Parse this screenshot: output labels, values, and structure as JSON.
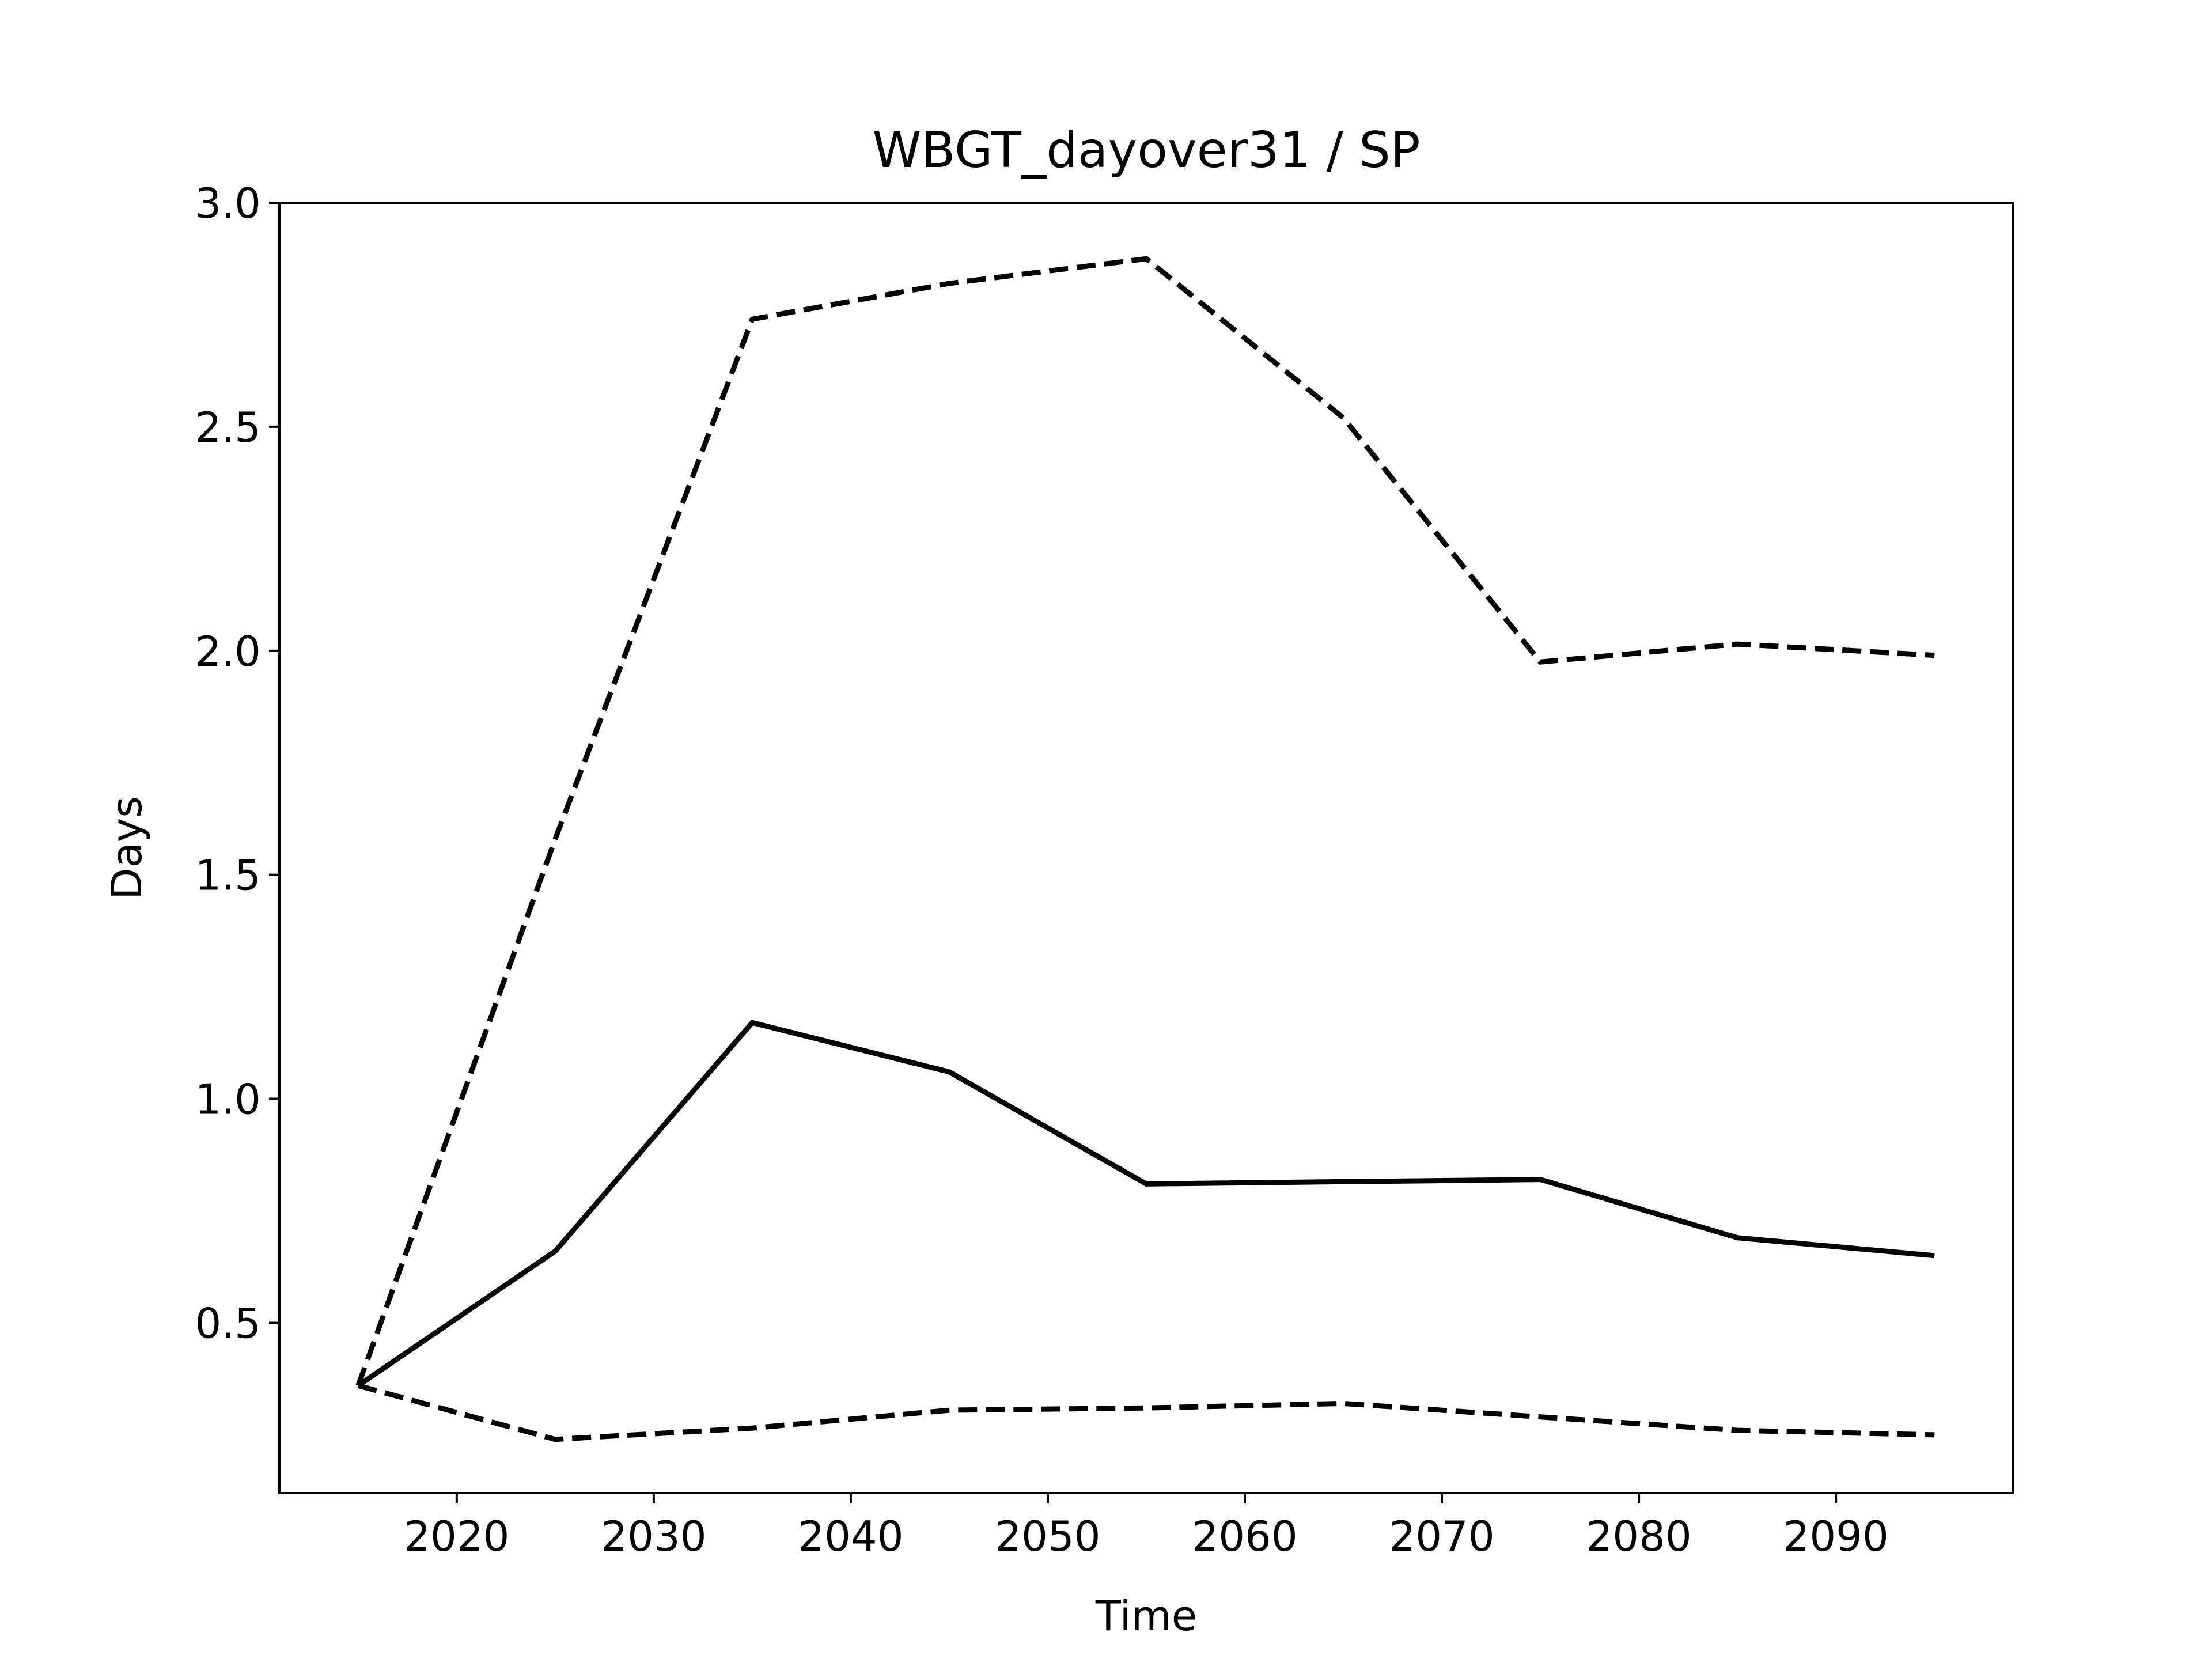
{
  "chart_data": {
    "type": "line",
    "title": "WBGT_dayover31 / SP",
    "xlabel": "Time",
    "ylabel": "Days",
    "xlim": [
      2011,
      2099
    ],
    "ylim": [
      0.12,
      3.0
    ],
    "xticks": [
      2020,
      2030,
      2040,
      2050,
      2060,
      2070,
      2080,
      2090
    ],
    "yticks": [
      0.5,
      1.0,
      1.5,
      2.0,
      2.5,
      3.0
    ],
    "ytick_labels": [
      "0.5",
      "1.0",
      "1.5",
      "2.0",
      "2.5",
      "3.0"
    ],
    "grid": false,
    "x": [
      2015,
      2025,
      2035,
      2045,
      2055,
      2065,
      2075,
      2085,
      2095
    ],
    "series": [
      {
        "style": "solid",
        "color": "#000000",
        "values": [
          0.36,
          0.66,
          1.17,
          1.06,
          0.81,
          0.815,
          0.82,
          0.69,
          0.65
        ]
      },
      {
        "style": "dashed",
        "color": "#000000",
        "values": [
          0.36,
          1.58,
          2.74,
          2.82,
          2.875,
          2.52,
          1.975,
          2.015,
          1.99
        ]
      },
      {
        "style": "dashed",
        "color": "#000000",
        "values": [
          0.36,
          0.24,
          0.265,
          0.305,
          0.31,
          0.32,
          0.29,
          0.26,
          0.25
        ]
      }
    ]
  }
}
